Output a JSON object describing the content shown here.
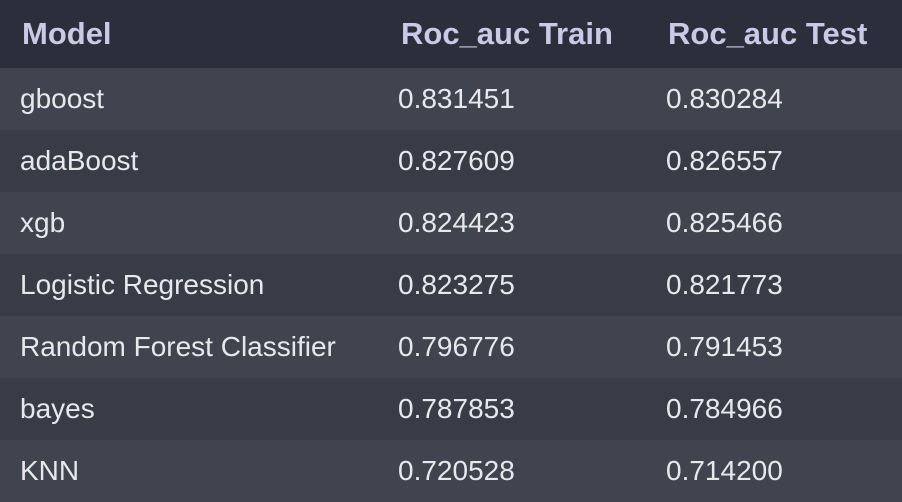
{
  "table": {
    "headers": {
      "model": "Model",
      "train": "Roc_auc Train",
      "test": "Roc_auc Test"
    },
    "rows": [
      {
        "model": "gboost",
        "train": "0.831451",
        "test": "0.830284"
      },
      {
        "model": "adaBoost",
        "train": "0.827609",
        "test": "0.826557"
      },
      {
        "model": "xgb",
        "train": "0.824423",
        "test": "0.825466"
      },
      {
        "model": "Logistic Regression",
        "train": "0.823275",
        "test": "0.821773"
      },
      {
        "model": "Random Forest Classifier",
        "train": "0.796776",
        "test": "0.791453"
      },
      {
        "model": "bayes",
        "train": "0.787853",
        "test": "0.784966"
      },
      {
        "model": "KNN",
        "train": "0.720528",
        "test": "0.714200"
      }
    ]
  },
  "colors": {
    "header_bg": "#2b2f3b",
    "header_text": "#c7cbe6",
    "row_odd_bg": "#40444f",
    "row_even_bg": "#383c47",
    "cell_text": "#e6e8ee"
  }
}
